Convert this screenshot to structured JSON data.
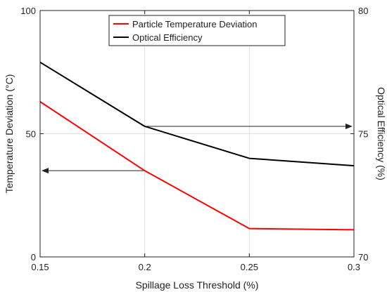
{
  "chart_data": {
    "type": "line",
    "x": [
      0.15,
      0.2,
      0.25,
      0.3
    ],
    "xlabel": "Spillage Loss Threshold (%)",
    "ylabel": "Temperature Deviation (°C)",
    "y2label": "Optical Efficiency (%)",
    "xlim": [
      0.15,
      0.3
    ],
    "ylim": [
      0,
      100
    ],
    "y2lim": [
      70,
      80
    ],
    "xticks": [
      "0.15",
      "0.2",
      "0.25",
      "0.3"
    ],
    "xtick_values": [
      0.15,
      0.2,
      0.25,
      0.3
    ],
    "yticks": [
      "0",
      "50",
      "100"
    ],
    "ytick_values": [
      0,
      50,
      100
    ],
    "y2ticks": [
      "70",
      "75",
      "80"
    ],
    "y2tick_values": [
      70,
      75,
      80
    ],
    "grid": true,
    "legend_position": "top-center",
    "series": [
      {
        "name": "Particle Temperature Deviation",
        "axis": "left",
        "color": "#ff0000",
        "values": [
          63,
          35,
          11.5,
          11
        ]
      },
      {
        "name": "Optical Efficiency",
        "axis": "right",
        "color": "#000000",
        "values": [
          77.9,
          75.3,
          74.0,
          73.7
        ]
      }
    ],
    "annotations": [
      {
        "type": "arrow",
        "points_to": "left axis",
        "from": [
          0.2,
          35
        ],
        "to": [
          0.15,
          35
        ]
      },
      {
        "type": "arrow",
        "points_to": "right axis",
        "from": [
          0.2,
          75.3
        ],
        "to": [
          0.3,
          75.3
        ]
      }
    ]
  }
}
